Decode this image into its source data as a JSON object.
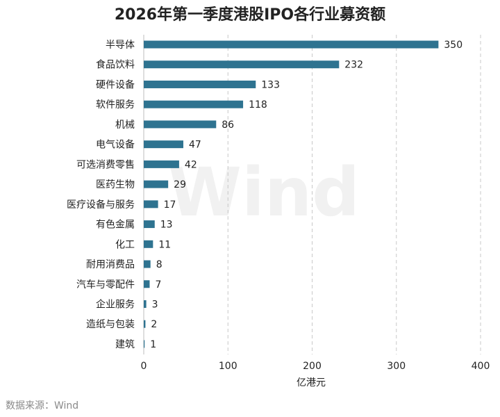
{
  "chart_data": {
    "type": "bar",
    "orientation": "horizontal",
    "title": "2026年第一季度港股IPO各行业募资额",
    "categories": [
      "半导体",
      "食品饮料",
      "硬件设备",
      "软件服务",
      "机械",
      "电气设备",
      "可选消费零售",
      "医药生物",
      "医疗设备与服务",
      "有色金属",
      "化工",
      "耐用消费品",
      "汽车与零配件",
      "企业服务",
      "造纸与包装",
      "建筑"
    ],
    "values": [
      350,
      232,
      133,
      118,
      86,
      47,
      42,
      29,
      17,
      13,
      11,
      8,
      7,
      3,
      2,
      1
    ],
    "xlabel": "亿港元",
    "ylabel": "",
    "xlim": [
      0,
      400
    ],
    "xticks": [
      0,
      100,
      200,
      300,
      400
    ],
    "grid": "vertical-dashed",
    "legend": "none",
    "bar_color": "#2e7390"
  },
  "source": "数据来源：Wind",
  "watermark": "Wind"
}
